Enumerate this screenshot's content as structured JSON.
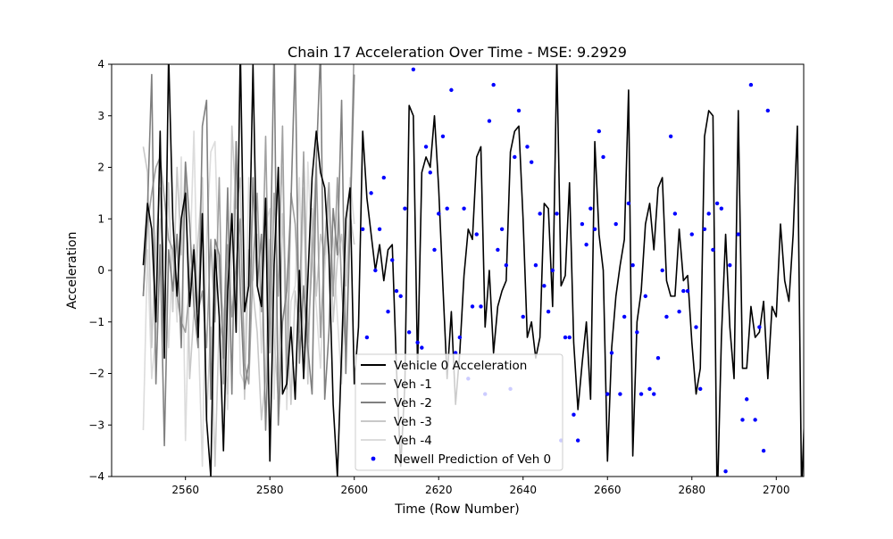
{
  "chart_data": {
    "type": "line",
    "title": "Chain 17 Acceleration Over Time - MSE: 9.2929",
    "xlabel": "Time (Row Number)",
    "ylabel": "Acceleration",
    "xlim": [
      2542.5,
      2706.5
    ],
    "ylim": [
      -4,
      4
    ],
    "xticks": [
      2560,
      2580,
      2600,
      2620,
      2640,
      2660,
      2680,
      2700
    ],
    "yticks": [
      -4,
      -3,
      -2,
      -1,
      0,
      1,
      2,
      3,
      4
    ],
    "grid": false,
    "legend_position": "lower-center",
    "series": [
      {
        "name": "Vehicle 0 Acceleration",
        "kind": "line",
        "color": "#000000",
        "x_start": 2550,
        "values": [
          0.1,
          1.3,
          0.8,
          -1.0,
          2.7,
          -1.7,
          4.2,
          1.0,
          -0.5,
          1.0,
          1.5,
          -0.7,
          0.4,
          -1.3,
          1.1,
          -2.9,
          -4.0,
          0.4,
          -0.9,
          -3.5,
          -0.4,
          1.1,
          -1.2,
          4.3,
          -0.8,
          -0.3,
          4.0,
          -0.3,
          -0.7,
          1.4,
          -3.7,
          0.1,
          2.0,
          -2.4,
          -2.2,
          -1.1,
          -2.5,
          0.0,
          -2.1,
          -0.2,
          1.8,
          2.7,
          1.9,
          1.6,
          0.3,
          -2.6,
          -4.0,
          -1.6,
          1.0,
          1.6,
          -2.2,
          -1.1,
          2.7,
          1.4,
          0.7,
          0.0,
          0.5,
          -0.2,
          0.4,
          0.5,
          -1.9,
          -3.8,
          -2.2,
          3.2,
          3.0,
          -1.9,
          1.9,
          2.2,
          2.0,
          3.0,
          1.6,
          -0.3,
          -2.1,
          -0.8,
          -2.6,
          -1.6,
          -0.1,
          0.8,
          0.6,
          2.2,
          2.4,
          -1.1,
          0.0,
          -1.6,
          -0.7,
          -0.4,
          -0.2,
          2.3,
          2.7,
          2.8,
          1.0,
          -1.3,
          -1.0,
          -1.7,
          -1.3,
          1.3,
          1.2,
          -0.7,
          4.1,
          -0.3,
          -0.1,
          1.7,
          -1.4,
          -2.7,
          -1.8,
          -1.0,
          -2.5,
          2.5,
          0.7,
          0.0,
          -3.7,
          -1.5,
          -0.5,
          0.1,
          0.6,
          3.5,
          -3.6,
          -1.0,
          -0.4,
          0.9,
          1.3,
          0.4,
          1.6,
          1.8,
          -0.2,
          -0.5,
          -0.5,
          0.8,
          -0.2,
          -0.1,
          -1.4,
          -2.4,
          -1.9,
          2.6,
          3.1,
          3.0,
          -4.6,
          -1.3,
          0.7,
          -1.1,
          -2.1,
          3.1,
          -1.9,
          -1.9,
          -0.7,
          -1.3,
          -1.2,
          -0.6,
          -2.1,
          -0.7,
          -0.9,
          0.9,
          -0.2,
          -0.6,
          0.7,
          2.8,
          -4.3,
          -2.1,
          -1.2,
          1.6
        ]
      },
      {
        "name": "Veh -1",
        "kind": "line",
        "color": "#a0a0a0",
        "x_start": 2550,
        "values": [
          -0.5,
          0.9,
          1.5,
          2.0,
          2.2,
          1.4,
          0.6,
          0.4,
          -0.5,
          -1.0,
          -1.2,
          -0.3,
          0.5,
          -0.8,
          -0.4,
          -1.5,
          0.6,
          -1.0,
          1.8,
          -2.2,
          0.5,
          -0.9,
          0.1,
          1.0,
          -1.8,
          -2.2,
          0.1,
          1.5,
          -0.8,
          2.6,
          -1.6,
          1.5,
          -0.5,
          2.8,
          -2.3,
          1.5,
          0.9,
          -0.8,
          2.3,
          -1.4,
          0.2,
          2.1,
          -1.3,
          0.5,
          1.7,
          -0.5,
          1.8,
          -0.3,
          -1.6,
          1.0,
          4.5
        ]
      },
      {
        "name": "Veh -2",
        "kind": "line",
        "color": "#808080",
        "x_start": 2550,
        "values": [
          -0.5,
          1.2,
          3.8,
          -2.2,
          0.5,
          -3.4,
          0.4,
          -0.4,
          0.7,
          -1.5,
          2.1,
          0.9,
          -0.7,
          -1.5,
          2.8,
          3.3,
          -2.5,
          0.6,
          0.3,
          -1.7,
          1.6,
          -2.4,
          2.5,
          -0.4,
          -2.3,
          -1.8,
          1.8,
          -0.3,
          0.7,
          -3.1,
          -0.4,
          4.4,
          -3.0,
          -1.0,
          -0.4,
          1.3,
          4.2,
          -1.8,
          -0.3,
          -1.5,
          -2.4,
          2.1,
          4.3,
          -2.5,
          -1.2,
          1.2,
          0.3,
          3.3,
          -2.0,
          0.9,
          3.8
        ]
      },
      {
        "name": "Veh -3",
        "kind": "line",
        "color": "#c8c8c8",
        "x_start": 2550,
        "values": [
          2.4,
          1.9,
          -1.5,
          0.6,
          1.6,
          -0.8,
          1.7,
          -0.8,
          2.0,
          0.3,
          2.1,
          -2.1,
          -0.8,
          0.6,
          1.8,
          -2.9,
          -1.1,
          -3.8,
          -1.0,
          -1.4,
          -2.4,
          2.8,
          1.2,
          1.8,
          -2.5,
          0.4,
          -0.4,
          -1.2,
          -2.9,
          -2.1,
          0.6,
          -1.3,
          -2.5,
          1.1,
          -0.6,
          -2.6,
          -0.4,
          -1.2,
          1.6,
          -2.2,
          1.2,
          -0.5,
          0.7,
          0.3,
          1.4,
          -1.0,
          0.2,
          0.7,
          -0.3,
          1.1,
          0.5
        ]
      },
      {
        "name": "Veh -4",
        "kind": "line",
        "color": "#dcdcdc",
        "x_start": 2550,
        "values": [
          -3.1,
          0.4,
          -2.1,
          -1.2,
          1.0,
          0.3,
          -1.5,
          0.5,
          -1.0,
          2.2,
          -3.3,
          0.0,
          2.7,
          -1.1,
          -3.8,
          0.6,
          2.3,
          2.5,
          -0.3,
          -0.8,
          -2.7,
          0.5,
          2.2,
          -2.0,
          -2.2,
          1.8,
          -0.2,
          0.7,
          -1.6,
          0.9,
          1.2,
          -2.5,
          0.9,
          2.0,
          -2.7,
          -0.6,
          -0.3,
          1.8,
          -1.5,
          2.1,
          0.3,
          -0.7,
          -1.9,
          0.0,
          1.1,
          0.6,
          -0.9,
          -2.2,
          0.4,
          1.8,
          0.9
        ]
      },
      {
        "name": "Newell Prediction of Veh 0",
        "kind": "scatter",
        "color": "#0000ff",
        "x_start": 2602,
        "values": [
          0.8,
          -1.3,
          1.5,
          0.0,
          0.8,
          1.8,
          -0.8,
          0.2,
          -0.4,
          -0.5,
          1.2,
          -1.2,
          3.9,
          -1.4,
          -1.5,
          2.4,
          1.9,
          0.4,
          1.1,
          2.6,
          1.2,
          3.5,
          -1.6,
          -1.3,
          1.2,
          -2.1,
          -0.7,
          0.7,
          -0.7,
          -2.4,
          2.9,
          3.6,
          0.4,
          0.8,
          0.1,
          -2.3,
          2.2,
          3.1,
          -0.9,
          2.4,
          2.1,
          0.1,
          1.1,
          -0.3,
          -0.8,
          0.0,
          1.1,
          -3.3,
          -1.3,
          -1.3,
          -2.8,
          -3.3,
          0.9,
          0.5,
          1.2,
          0.8,
          2.7,
          2.2,
          -2.4,
          -1.6,
          0.9,
          -2.4,
          -0.9,
          1.3,
          0.1,
          -1.2,
          -2.4,
          -0.5,
          -2.3,
          -2.4,
          -1.7,
          0.0,
          -0.9,
          2.6,
          1.1,
          -0.8,
          -0.4,
          -0.4,
          0.7,
          -1.1,
          -2.3,
          0.8,
          1.1,
          0.4,
          1.3,
          1.2,
          -3.9,
          0.1,
          -4.4,
          0.7,
          -2.9,
          -2.5,
          3.6,
          -2.9,
          -1.1,
          -3.5,
          3.1
        ]
      }
    ]
  }
}
